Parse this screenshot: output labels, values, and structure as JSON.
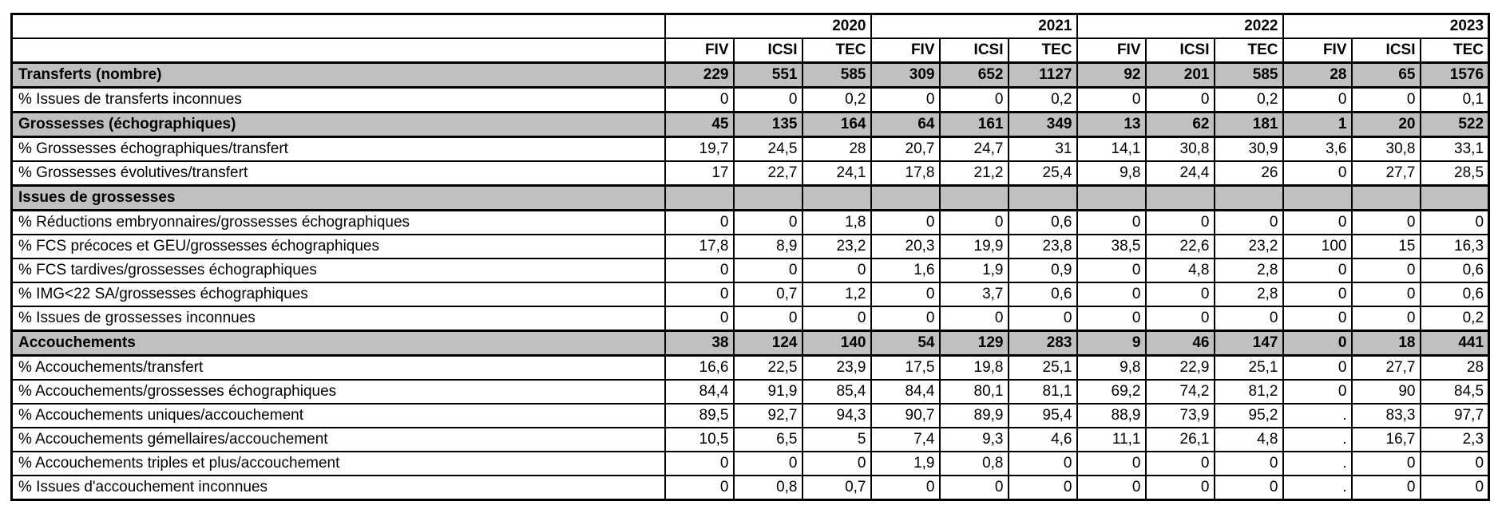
{
  "table": {
    "colors": {
      "section_row_bg": "#c0c0c0",
      "border": "#000000",
      "background": "#ffffff"
    },
    "year_groups": [
      {
        "year": "2020",
        "subcols": [
          "FIV",
          "ICSI",
          "TEC"
        ]
      },
      {
        "year": "2021",
        "subcols": [
          "FIV",
          "ICSI",
          "TEC"
        ]
      },
      {
        "year": "2022",
        "subcols": [
          "FIV",
          "ICSI",
          "TEC"
        ]
      },
      {
        "year": "2023",
        "subcols": [
          "FIV",
          "ICSI",
          "TEC"
        ]
      }
    ],
    "rows": [
      {
        "label": "Transferts (nombre)",
        "section": true,
        "values": [
          "229",
          "551",
          "585",
          "309",
          "652",
          "1127",
          "92",
          "201",
          "585",
          "28",
          "65",
          "1576"
        ]
      },
      {
        "label": "% Issues de transferts inconnues",
        "section": false,
        "values": [
          "0",
          "0",
          "0,2",
          "0",
          "0",
          "0,2",
          "0",
          "0",
          "0,2",
          "0",
          "0",
          "0,1"
        ]
      },
      {
        "label": "Grossesses (échographiques)",
        "section": true,
        "values": [
          "45",
          "135",
          "164",
          "64",
          "161",
          "349",
          "13",
          "62",
          "181",
          "1",
          "20",
          "522"
        ]
      },
      {
        "label": "% Grossesses échographiques/transfert",
        "section": false,
        "values": [
          "19,7",
          "24,5",
          "28",
          "20,7",
          "24,7",
          "31",
          "14,1",
          "30,8",
          "30,9",
          "3,6",
          "30,8",
          "33,1"
        ]
      },
      {
        "label": "% Grossesses évolutives/transfert",
        "section": false,
        "values": [
          "17",
          "22,7",
          "24,1",
          "17,8",
          "21,2",
          "25,4",
          "9,8",
          "24,4",
          "26",
          "0",
          "27,7",
          "28,5"
        ]
      },
      {
        "label": "Issues de grossesses",
        "section": true,
        "values": [
          "",
          "",
          "",
          "",
          "",
          "",
          "",
          "",
          "",
          "",
          "",
          ""
        ]
      },
      {
        "label": "% Réductions embryonnaires/grossesses échographiques",
        "section": false,
        "values": [
          "0",
          "0",
          "1,8",
          "0",
          "0",
          "0,6",
          "0",
          "0",
          "0",
          "0",
          "0",
          "0"
        ]
      },
      {
        "label": "% FCS précoces et GEU/grossesses échographiques",
        "section": false,
        "values": [
          "17,8",
          "8,9",
          "23,2",
          "20,3",
          "19,9",
          "23,8",
          "38,5",
          "22,6",
          "23,2",
          "100",
          "15",
          "16,3"
        ]
      },
      {
        "label": "% FCS tardives/grossesses échographiques",
        "section": false,
        "values": [
          "0",
          "0",
          "0",
          "1,6",
          "1,9",
          "0,9",
          "0",
          "4,8",
          "2,8",
          "0",
          "0",
          "0,6"
        ]
      },
      {
        "label": "% IMG<22 SA/grossesses échographiques",
        "section": false,
        "values": [
          "0",
          "0,7",
          "1,2",
          "0",
          "3,7",
          "0,6",
          "0",
          "0",
          "2,8",
          "0",
          "0",
          "0,6"
        ]
      },
      {
        "label": "% Issues de grossesses inconnues",
        "section": false,
        "values": [
          "0",
          "0",
          "0",
          "0",
          "0",
          "0",
          "0",
          "0",
          "0",
          "0",
          "0",
          "0,2"
        ]
      },
      {
        "label": "Accouchements",
        "section": true,
        "values": [
          "38",
          "124",
          "140",
          "54",
          "129",
          "283",
          "9",
          "46",
          "147",
          "0",
          "18",
          "441"
        ]
      },
      {
        "label": "% Accouchements/transfert",
        "section": false,
        "values": [
          "16,6",
          "22,5",
          "23,9",
          "17,5",
          "19,8",
          "25,1",
          "9,8",
          "22,9",
          "25,1",
          "0",
          "27,7",
          "28"
        ]
      },
      {
        "label": "% Accouchements/grossesses échographiques",
        "section": false,
        "values": [
          "84,4",
          "91,9",
          "85,4",
          "84,4",
          "80,1",
          "81,1",
          "69,2",
          "74,2",
          "81,2",
          "0",
          "90",
          "84,5"
        ]
      },
      {
        "label": "% Accouchements uniques/accouchement",
        "section": false,
        "values": [
          "89,5",
          "92,7",
          "94,3",
          "90,7",
          "89,9",
          "95,4",
          "88,9",
          "73,9",
          "95,2",
          ".",
          "83,3",
          "97,7"
        ]
      },
      {
        "label": "% Accouchements gémellaires/accouchement",
        "section": false,
        "values": [
          "10,5",
          "6,5",
          "5",
          "7,4",
          "9,3",
          "4,6",
          "11,1",
          "26,1",
          "4,8",
          ".",
          "16,7",
          "2,3"
        ]
      },
      {
        "label": "% Accouchements triples et plus/accouchement",
        "section": false,
        "values": [
          "0",
          "0",
          "0",
          "1,9",
          "0,8",
          "0",
          "0",
          "0",
          "0",
          ".",
          "0",
          "0"
        ]
      },
      {
        "label": "% Issues d'accouchement inconnues",
        "section": false,
        "values": [
          "0",
          "0,8",
          "0,7",
          "0",
          "0",
          "0",
          "0",
          "0",
          "0",
          ".",
          "0",
          "0"
        ]
      }
    ]
  }
}
